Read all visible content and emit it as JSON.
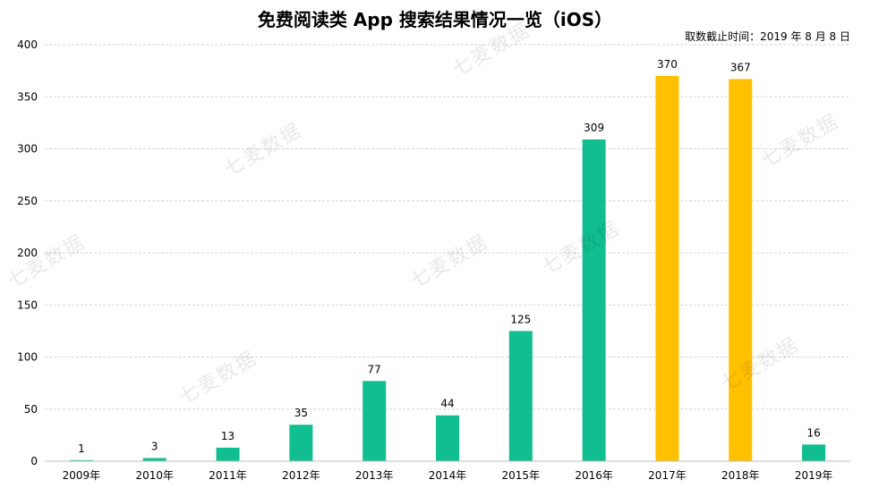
{
  "chart_data": {
    "type": "bar",
    "title": "免费阅读类 App 搜索结果情况一览（iOS）",
    "note": "取数截止时间：2019 年 8 月 8 日",
    "xlabel": "",
    "ylabel": "",
    "categories": [
      "2009年",
      "2010年",
      "2011年",
      "2012年",
      "2013年",
      "2014年",
      "2015年",
      "2016年",
      "2017年",
      "2018年",
      "2019年"
    ],
    "values": [
      1,
      3,
      13,
      35,
      77,
      44,
      125,
      309,
      370,
      367,
      16
    ],
    "highlight": [
      false,
      false,
      false,
      false,
      false,
      false,
      false,
      false,
      true,
      true,
      false
    ],
    "ylim": [
      0,
      400
    ],
    "yticks": [
      0,
      50,
      100,
      150,
      200,
      250,
      300,
      350,
      400
    ],
    "grid": true,
    "legend": "none"
  },
  "colors": {
    "bar": "#10BE8F",
    "highlight": "#FFC000",
    "grid": "#D3D3D3",
    "axis": "#BFBFBF"
  },
  "watermark": "七麦数据"
}
